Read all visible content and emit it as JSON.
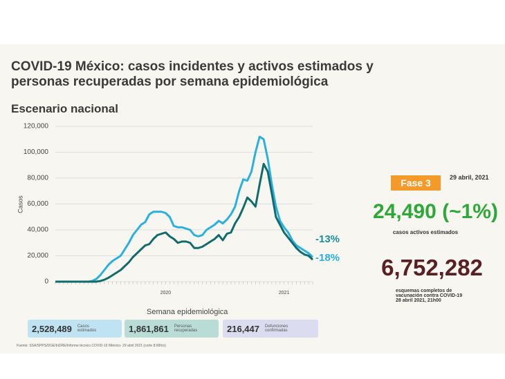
{
  "chart_data": {
    "type": "line",
    "title": "COVID-19 México: casos incidentes y activos estimados y personas recuperadas por semana epidemiológica",
    "subtitle": "Escenario nacional",
    "x_label": "Semana epidemiológica",
    "y_label": "Casos",
    "categories": [
      null,
      null,
      null,
      null,
      null,
      null,
      null,
      null,
      null,
      null,
      null,
      null,
      null,
      null,
      null,
      null,
      null,
      null,
      null,
      null,
      null,
      null,
      null,
      null,
      null,
      null,
      null,
      "2020",
      null,
      null,
      null,
      null,
      null,
      null,
      null,
      null,
      null,
      null,
      null,
      null,
      null,
      null,
      null,
      null,
      null,
      null,
      null,
      null,
      null,
      null,
      null,
      null,
      null,
      null,
      null,
      null,
      "2021",
      null,
      null,
      null,
      null,
      null,
      null,
      null
    ],
    "series": [
      {
        "color": "#2ab0e0",
        "values": [
          0,
          0,
          0,
          0,
          0,
          0,
          0,
          0,
          0,
          500,
          2000,
          5000,
          9000,
          13000,
          16000,
          18000,
          20000,
          25000,
          30000,
          36000,
          40000,
          44000,
          46000,
          52000,
          54000,
          54000,
          54000,
          53000,
          50000,
          43000,
          42000,
          42000,
          41000,
          40000,
          36000,
          35000,
          36000,
          40000,
          42000,
          44000,
          47000,
          45000,
          48000,
          52000,
          58000,
          70000,
          79000,
          78000,
          85000,
          100000,
          112000,
          110000,
          95000,
          75000,
          58000,
          47000,
          42000,
          38000,
          32000,
          28000,
          26000,
          24000,
          22000,
          19000
        ]
      },
      {
        "color": "#116b6b",
        "values": [
          0,
          0,
          0,
          0,
          0,
          0,
          0,
          0,
          0,
          0,
          0,
          500,
          1500,
          3000,
          5000,
          7000,
          9000,
          12000,
          15000,
          19000,
          22000,
          25000,
          28000,
          29000,
          33000,
          36000,
          37000,
          38000,
          35000,
          33000,
          30000,
          31000,
          31000,
          30000,
          26000,
          26000,
          27000,
          29000,
          31000,
          33000,
          36000,
          32000,
          37000,
          38000,
          45000,
          50000,
          57000,
          65000,
          62000,
          58000,
          75000,
          91000,
          85000,
          68000,
          50000,
          44000,
          38000,
          34000,
          30000,
          26000,
          23000,
          21000,
          20000,
          17000
        ]
      }
    ],
    "annotations": [
      {
        "text": "-13%",
        "color": "#1a8f9a"
      },
      {
        "text": "-18%",
        "color": "#2ab0e0"
      }
    ],
    "ylim": [
      0,
      120000
    ],
    "yticks": [
      0,
      {
        "value": 20000,
        "label": "20,000"
      },
      {
        "value": 40000,
        "label": "40,000"
      },
      {
        "value": 60000,
        "label": "60,000"
      },
      {
        "value": 80000,
        "label": "80,000"
      },
      {
        "value": 100000,
        "label": "100,000"
      },
      {
        "value": 120000,
        "label": "120,000"
      }
    ],
    "grid": true
  },
  "panel": {
    "phase": "Fase 3",
    "date": "29 abril, 2021",
    "active_cases": "24,490 (~1%)",
    "active_caption": "casos activos estimados",
    "vaccination": "6,752,282",
    "vaccination_caption": "esquemas completos de vacunación contra COVID-19",
    "vaccination_date": "28 abril 2021, 21h00"
  },
  "stats": [
    {
      "value": "2,528,489",
      "label": "Casos estimados"
    },
    {
      "value": "1,861,861",
      "label": "Personas recuperadas"
    },
    {
      "value": "216,447",
      "label": "Defunciones confirmadas"
    }
  ],
  "footer": "Fuente: SSA/SPPS/DGE/InDRE/Informe técnico.COVID-19 /México- 29 abril 2021 (corte 8:00hrs)"
}
